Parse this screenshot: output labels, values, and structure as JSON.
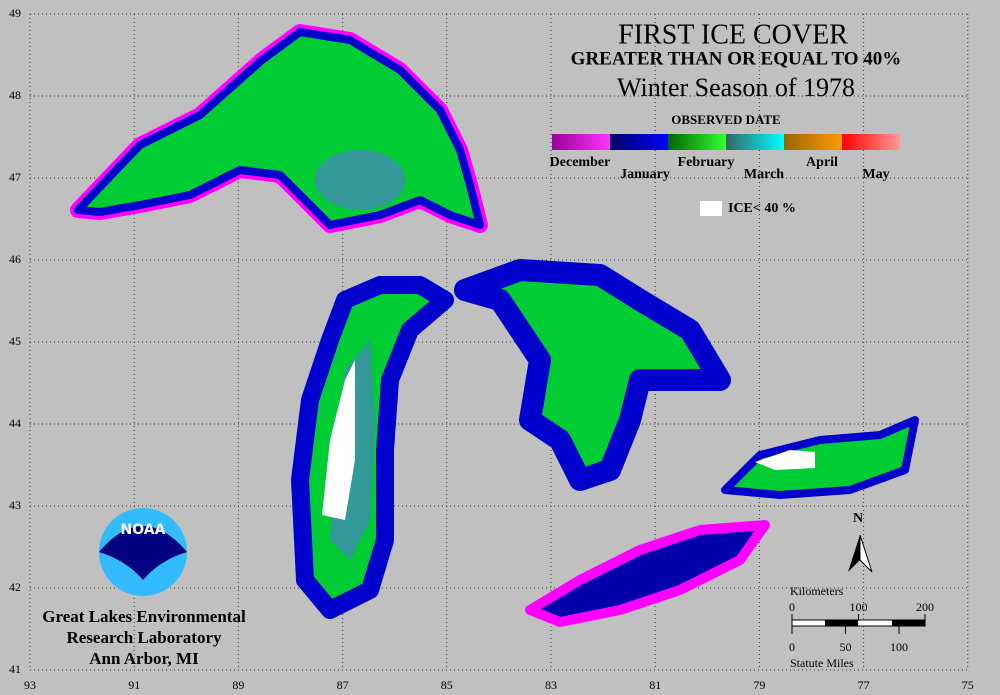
{
  "header": {
    "title": "FIRST ICE COVER",
    "subtitle": "GREATER THAN OR EQUAL TO 40%",
    "season": "Winter Season of 1978"
  },
  "legend": {
    "title": "OBSERVED DATE",
    "months": [
      "December",
      "January",
      "February",
      "March",
      "April",
      "May"
    ],
    "ice_label": "ICE< 40 %"
  },
  "map": {
    "latitudes": [
      49,
      48,
      47,
      46,
      45,
      44,
      43,
      42,
      41
    ],
    "longitudes": [
      93,
      91,
      89,
      87,
      85,
      83,
      81,
      79,
      77,
      75
    ],
    "north": "N"
  },
  "scale": {
    "km_label": "Kilometers",
    "km_ticks": [
      0,
      100,
      200
    ],
    "mile_ticks": [
      0,
      50,
      100
    ],
    "mile_label": "Statute Miles"
  },
  "logo": {
    "text": "NOAA"
  },
  "credit": {
    "lines": [
      "Great Lakes Environmental",
      "Research Laboratory",
      "Ann Arbor, MI"
    ]
  }
}
